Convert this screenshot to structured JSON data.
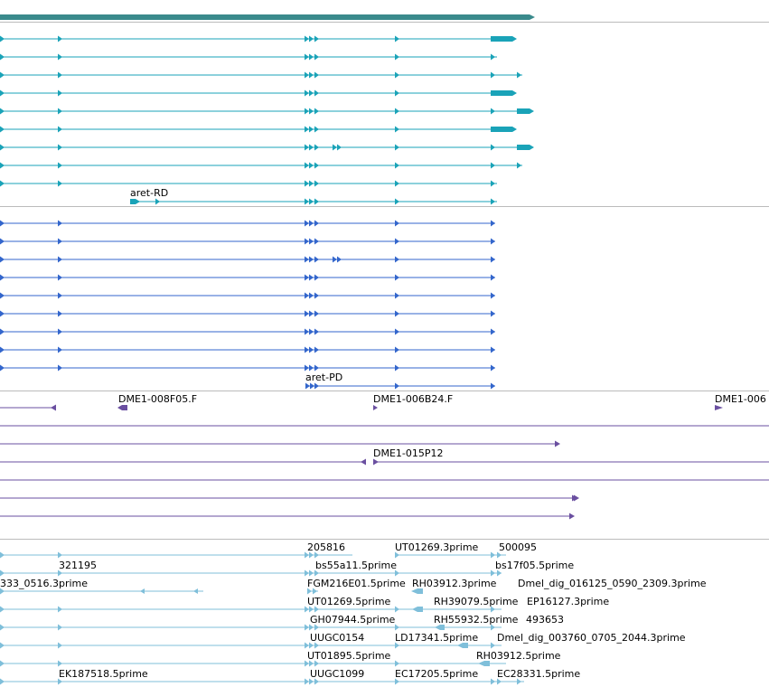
{
  "colors": {
    "gene": "#3a8a8c",
    "mrna": "#1aa3b8",
    "protein": "#3366cc",
    "clone": "#6a4fa0",
    "est": "#7fbfda",
    "divider": "#bbbbbb"
  },
  "tracks": {
    "mrna": {
      "label": "aret-RD"
    },
    "protein": {
      "label": "aret-PD"
    },
    "clones": {
      "labels": [
        "DME1-008F05.F",
        "DME1-006B24.F",
        "DME1-006",
        "DME1-015P12"
      ]
    },
    "ests": {
      "labels": [
        "205816",
        "UT01269.3prime",
        "500095",
        "321195",
        "bs55a11.5prime",
        "bs17f05.5prime",
        "333_0516.3prime",
        "FGM216E01.5prime",
        "RH03912.3prime",
        "Dmel_dig_016125_0590_2309.3prime",
        "UT01269.5prime",
        "RH39079.5prime",
        "EP16127.3prime",
        "GH07944.5prime",
        "RH55932.5prime",
        "493653",
        "UUGC0154",
        "LD17341.5prime",
        "Dmel_dig_003760_0705_2044.3prime",
        "UT01895.5prime",
        "RH03912.5prime",
        "EK187518.5prime",
        "UUGC1099",
        "EC17205.5prime",
        "EC28331.5prime"
      ]
    }
  }
}
